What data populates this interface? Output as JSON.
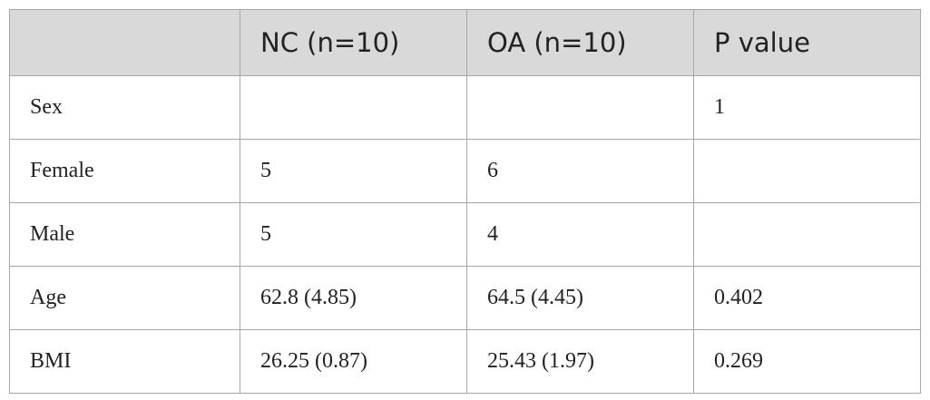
{
  "table": {
    "header": [
      null,
      "NC (n=10)",
      "OA (n=10)",
      "P value"
    ],
    "rows": [
      [
        "Sex",
        null,
        null,
        "1"
      ],
      [
        "Female",
        "5",
        "6",
        null
      ],
      [
        "Male",
        "5",
        "4",
        null
      ],
      [
        "Age",
        "62.8 (4.85)",
        "64.5 (4.45)",
        "0.402"
      ],
      [
        "BMI",
        "26.25 (0.87)",
        "25.43 (1.97)",
        "0.269"
      ]
    ]
  }
}
